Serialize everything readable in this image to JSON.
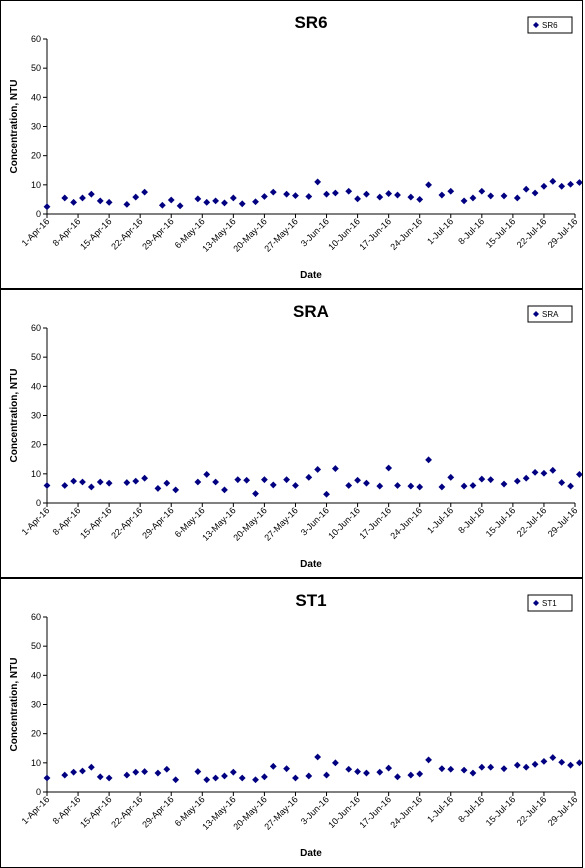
{
  "chart_data": [
    {
      "type": "scatter",
      "title": "SR6",
      "xlabel": "Date",
      "ylabel": "Concentration, NTU",
      "ylim": [
        0,
        60
      ],
      "yticks": [
        0,
        10,
        20,
        30,
        40,
        50,
        60
      ],
      "xlim": [
        "2016-04-01",
        "2016-07-29"
      ],
      "xtick_labels": [
        "1-Apr-16",
        "8-Apr-16",
        "15-Apr-16",
        "22-Apr-16",
        "29-Apr-16",
        "6-May-16",
        "13-May-16",
        "20-May-16",
        "27-May-16",
        "3-Jun-16",
        "10-Jun-16",
        "17-Jun-16",
        "24-Jun-16",
        "1-Jul-16",
        "8-Jul-16",
        "15-Jul-16",
        "22-Jul-16",
        "29-Jul-16"
      ],
      "grid": false,
      "legend": "top-right",
      "marker_color": "#000080",
      "series": [
        {
          "name": "SR6",
          "x": [
            "2016-04-01",
            "2016-04-05",
            "2016-04-07",
            "2016-04-09",
            "2016-04-11",
            "2016-04-13",
            "2016-04-15",
            "2016-04-19",
            "2016-04-21",
            "2016-04-23",
            "2016-04-27",
            "2016-04-29",
            "2016-05-01",
            "2016-05-05",
            "2016-05-07",
            "2016-05-09",
            "2016-05-11",
            "2016-05-13",
            "2016-05-15",
            "2016-05-18",
            "2016-05-20",
            "2016-05-22",
            "2016-05-25",
            "2016-05-27",
            "2016-05-30",
            "2016-06-01",
            "2016-06-03",
            "2016-06-05",
            "2016-06-08",
            "2016-06-10",
            "2016-06-12",
            "2016-06-15",
            "2016-06-17",
            "2016-06-19",
            "2016-06-22",
            "2016-06-24",
            "2016-06-26",
            "2016-06-29",
            "2016-07-01",
            "2016-07-04",
            "2016-07-06",
            "2016-07-08",
            "2016-07-10",
            "2016-07-13",
            "2016-07-16",
            "2016-07-18",
            "2016-07-20",
            "2016-07-22",
            "2016-07-24",
            "2016-07-26",
            "2016-07-28",
            "2016-07-30"
          ],
          "y": [
            2.5,
            5.5,
            4,
            5.5,
            6.8,
            4.5,
            4,
            3.3,
            5.8,
            7.5,
            3,
            4.8,
            2.8,
            5.2,
            4,
            4.5,
            3.8,
            5.5,
            3.5,
            4.2,
            6,
            7.5,
            6.8,
            6.3,
            6,
            11,
            6.8,
            7.2,
            7.8,
            5.2,
            6.8,
            5.8,
            7,
            6.5,
            5.8,
            5,
            10,
            6.5,
            7.8,
            4.5,
            5.5,
            7.8,
            6.2,
            6.2,
            5.5,
            8.5,
            7.2,
            9.5,
            11.2,
            9.5,
            10.2,
            10.8
          ]
        }
      ]
    },
    {
      "type": "scatter",
      "title": "SRA",
      "xlabel": "Date",
      "ylabel": "Concentration, NTU",
      "ylim": [
        0,
        60
      ],
      "yticks": [
        0,
        10,
        20,
        30,
        40,
        50,
        60
      ],
      "xlim": [
        "2016-04-01",
        "2016-07-29"
      ],
      "xtick_labels": [
        "1-Apr-16",
        "8-Apr-16",
        "15-Apr-16",
        "22-Apr-16",
        "29-Apr-16",
        "6-May-16",
        "13-May-16",
        "20-May-16",
        "27-May-16",
        "3-Jun-16",
        "10-Jun-16",
        "17-Jun-16",
        "24-Jun-16",
        "1-Jul-16",
        "8-Jul-16",
        "15-Jul-16",
        "22-Jul-16",
        "29-Jul-16"
      ],
      "grid": false,
      "legend": "top-right",
      "marker_color": "#000080",
      "series": [
        {
          "name": "SRA",
          "x": [
            "2016-04-01",
            "2016-04-05",
            "2016-04-07",
            "2016-04-09",
            "2016-04-11",
            "2016-04-13",
            "2016-04-15",
            "2016-04-19",
            "2016-04-21",
            "2016-04-23",
            "2016-04-26",
            "2016-04-28",
            "2016-04-30",
            "2016-05-05",
            "2016-05-07",
            "2016-05-09",
            "2016-05-11",
            "2016-05-14",
            "2016-05-16",
            "2016-05-18",
            "2016-05-20",
            "2016-05-22",
            "2016-05-25",
            "2016-05-27",
            "2016-05-30",
            "2016-06-01",
            "2016-06-03",
            "2016-06-05",
            "2016-06-08",
            "2016-06-10",
            "2016-06-12",
            "2016-06-15",
            "2016-06-17",
            "2016-06-19",
            "2016-06-22",
            "2016-06-24",
            "2016-06-26",
            "2016-06-29",
            "2016-07-01",
            "2016-07-04",
            "2016-07-06",
            "2016-07-08",
            "2016-07-10",
            "2016-07-13",
            "2016-07-16",
            "2016-07-18",
            "2016-07-20",
            "2016-07-22",
            "2016-07-24",
            "2016-07-26",
            "2016-07-28",
            "2016-07-30"
          ],
          "y": [
            6,
            6,
            7.5,
            7.2,
            5.5,
            7.2,
            6.8,
            7,
            7.5,
            8.5,
            5,
            6.8,
            4.5,
            7.2,
            9.8,
            7.2,
            4.5,
            8,
            7.8,
            3.2,
            8,
            6.2,
            8,
            6,
            8.8,
            11.5,
            3,
            11.8,
            6,
            7.8,
            6.8,
            5.8,
            12,
            6,
            5.8,
            5.5,
            14.8,
            5.5,
            8.8,
            5.8,
            6,
            8.2,
            8,
            6.5,
            7.5,
            8.5,
            10.5,
            10.2,
            11.2,
            7,
            5.8,
            9.8
          ]
        }
      ]
    },
    {
      "type": "scatter",
      "title": "ST1",
      "xlabel": "Date",
      "ylabel": "Concentration, NTU",
      "ylim": [
        0,
        60
      ],
      "yticks": [
        0,
        10,
        20,
        30,
        40,
        50,
        60
      ],
      "xlim": [
        "2016-04-01",
        "2016-07-29"
      ],
      "xtick_labels": [
        "1-Apr-16",
        "8-Apr-16",
        "15-Apr-16",
        "22-Apr-16",
        "29-Apr-16",
        "6-May-16",
        "13-May-16",
        "20-May-16",
        "27-May-16",
        "3-Jun-16",
        "10-Jun-16",
        "17-Jun-16",
        "24-Jun-16",
        "1-Jul-16",
        "8-Jul-16",
        "15-Jul-16",
        "22-Jul-16",
        "29-Jul-16"
      ],
      "grid": false,
      "legend": "top-right",
      "marker_color": "#000080",
      "series": [
        {
          "name": "ST1",
          "x": [
            "2016-04-01",
            "2016-04-05",
            "2016-04-07",
            "2016-04-09",
            "2016-04-11",
            "2016-04-13",
            "2016-04-15",
            "2016-04-19",
            "2016-04-21",
            "2016-04-23",
            "2016-04-26",
            "2016-04-28",
            "2016-04-30",
            "2016-05-05",
            "2016-05-07",
            "2016-05-09",
            "2016-05-11",
            "2016-05-13",
            "2016-05-15",
            "2016-05-18",
            "2016-05-20",
            "2016-05-22",
            "2016-05-25",
            "2016-05-27",
            "2016-05-30",
            "2016-06-01",
            "2016-06-03",
            "2016-06-05",
            "2016-06-08",
            "2016-06-10",
            "2016-06-12",
            "2016-06-15",
            "2016-06-17",
            "2016-06-19",
            "2016-06-22",
            "2016-06-24",
            "2016-06-26",
            "2016-06-29",
            "2016-07-01",
            "2016-07-04",
            "2016-07-06",
            "2016-07-08",
            "2016-07-10",
            "2016-07-13",
            "2016-07-16",
            "2016-07-18",
            "2016-07-20",
            "2016-07-22",
            "2016-07-24",
            "2016-07-26",
            "2016-07-28",
            "2016-07-30"
          ],
          "y": [
            4.8,
            5.8,
            6.8,
            7.2,
            8.5,
            5.2,
            4.8,
            5.8,
            6.8,
            7,
            6.5,
            7.8,
            4.2,
            7,
            4.2,
            4.8,
            5.5,
            6.8,
            4.8,
            4.2,
            5.2,
            8.8,
            8,
            4.8,
            5.5,
            12,
            5.8,
            10,
            7.8,
            7,
            6.5,
            6.8,
            8.2,
            5.2,
            5.8,
            6.2,
            11,
            8,
            7.8,
            7.5,
            6.5,
            8.5,
            8.5,
            8,
            9.2,
            8.5,
            9.5,
            10.5,
            11.8,
            10.2,
            9.2,
            10
          ]
        }
      ]
    }
  ]
}
